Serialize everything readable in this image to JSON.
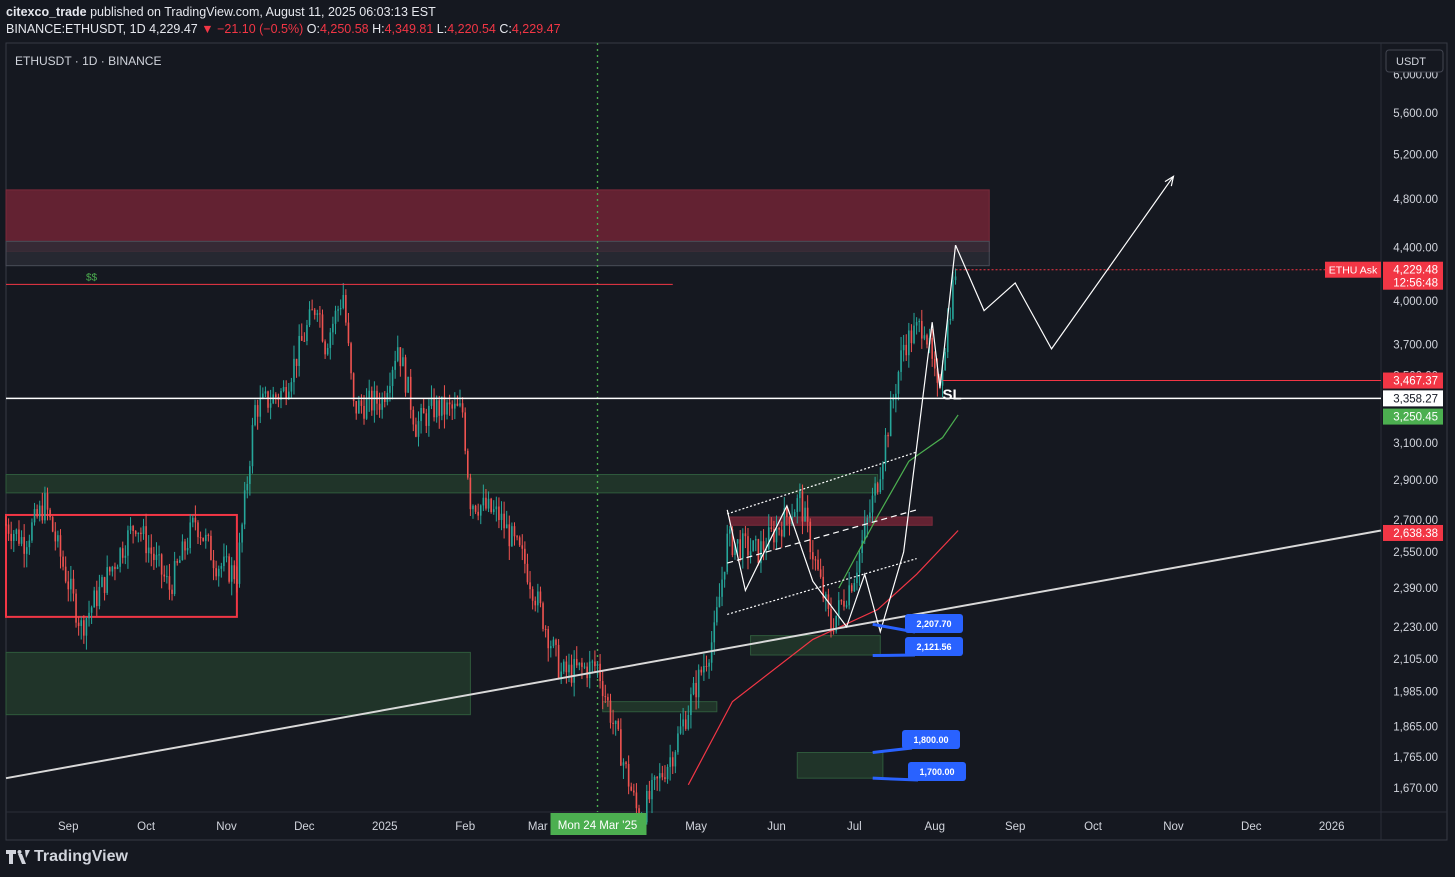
{
  "header": {
    "author": "citexco_trade",
    "published_text": "published on TradingView.com, August 11, 2025 06:03:13 EST",
    "symbol_line": "BINANCE:ETHUSDT, 1D",
    "last": "4,229.47",
    "change": "▼ −21.10 (−0.5%)",
    "o_label": "O:",
    "o": "4,250.58",
    "h_label": "H:",
    "h": "4,349.81",
    "l_label": "L:",
    "l": "4,220.54",
    "c_label": "C:",
    "c": "4,229.47"
  },
  "footer": {
    "brand": "TradingView"
  },
  "colors": {
    "background": "#151820",
    "up": "#26a69a",
    "down": "#ef5350",
    "supply_zone": "#6b2434",
    "demand_zone": "#22392c",
    "accent_blue": "#2962ff",
    "cursor_line": "#4caf50"
  },
  "chart_data": {
    "type": "candlestick",
    "title": "ETHUSDT · 1D · BINANCE",
    "currency": "USDT",
    "scale": "log",
    "ylim": [
      1600,
      6350
    ],
    "x_range": [
      "2024-08-08",
      "2026-01-20"
    ],
    "y_ticks": [
      6000,
      5600,
      5200,
      4800,
      4400,
      4000,
      3700,
      3500,
      3100,
      2900,
      2700,
      2550,
      2390,
      2230,
      2105,
      1985,
      1865,
      1765,
      1670
    ],
    "y_tick_labels": [
      "6,000.00",
      "5,600.00",
      "5,200.00",
      "4,800.00",
      "4,400.00",
      "4,000.00",
      "3,700.00",
      "3,500.00",
      "3,100.00",
      "2,900.00",
      "2,700.00",
      "2,550.00",
      "2,390.00",
      "2,230.00",
      "2,105.00",
      "1,985.00",
      "1,865.00",
      "1,765.00",
      "1,670.00"
    ],
    "x_ticks": [
      {
        "label": "Sep",
        "date": "2024-09-01"
      },
      {
        "label": "Oct",
        "date": "2024-10-01"
      },
      {
        "label": "Nov",
        "date": "2024-11-01"
      },
      {
        "label": "Dec",
        "date": "2024-12-01"
      },
      {
        "label": "2025",
        "date": "2025-01-01"
      },
      {
        "label": "Feb",
        "date": "2025-02-01"
      },
      {
        "label": "Mar",
        "date": "2025-03-01"
      },
      {
        "label": "May",
        "date": "2025-05-01"
      },
      {
        "label": "Jun",
        "date": "2025-06-01"
      },
      {
        "label": "Jul",
        "date": "2025-07-01"
      },
      {
        "label": "Aug",
        "date": "2025-08-01"
      },
      {
        "label": "Sep",
        "date": "2025-09-01"
      },
      {
        "label": "Oct",
        "date": "2025-10-01"
      },
      {
        "label": "Nov",
        "date": "2025-11-01"
      },
      {
        "label": "Dec",
        "date": "2025-12-01"
      },
      {
        "label": "2026",
        "date": "2026-01-01"
      }
    ],
    "cursor": {
      "date": "2025-03-24",
      "label": "Mon 24 Mar '25"
    },
    "price_close_path": [
      [
        "2024-08-08",
        2680
      ],
      [
        "2024-08-15",
        2600
      ],
      [
        "2024-08-23",
        2780
      ],
      [
        "2024-09-06",
        2230
      ],
      [
        "2024-09-15",
        2420
      ],
      [
        "2024-09-27",
        2690
      ],
      [
        "2024-10-10",
        2390
      ],
      [
        "2024-10-20",
        2700
      ],
      [
        "2024-10-28",
        2500
      ],
      [
        "2024-11-05",
        2450
      ],
      [
        "2024-11-12",
        3300
      ],
      [
        "2024-11-23",
        3400
      ],
      [
        "2024-12-06",
        4000
      ],
      [
        "2024-12-09",
        3700
      ],
      [
        "2024-12-16",
        4050
      ],
      [
        "2024-12-20",
        3300
      ],
      [
        "2024-12-31",
        3350
      ],
      [
        "2025-01-06",
        3700
      ],
      [
        "2025-01-13",
        3200
      ],
      [
        "2025-01-20",
        3300
      ],
      [
        "2025-01-31",
        3280
      ],
      [
        "2025-02-03",
        2800
      ],
      [
        "2025-02-14",
        2720
      ],
      [
        "2025-02-24",
        2500
      ],
      [
        "2025-03-10",
        2050
      ],
      [
        "2025-03-24",
        2080
      ],
      [
        "2025-04-09",
        1580
      ],
      [
        "2025-04-22",
        1780
      ],
      [
        "2025-05-08",
        2200
      ],
      [
        "2025-05-13",
        2600
      ],
      [
        "2025-05-25",
        2550
      ],
      [
        "2025-06-10",
        2800
      ],
      [
        "2025-06-22",
        2230
      ],
      [
        "2025-07-01",
        2450
      ],
      [
        "2025-07-10",
        2900
      ],
      [
        "2025-07-20",
        3700
      ],
      [
        "2025-07-28",
        3850
      ],
      [
        "2025-08-02",
        3380
      ],
      [
        "2025-08-09",
        4229.47
      ]
    ],
    "moving_averages": [
      {
        "name": "green",
        "color": "#4caf50",
        "points": [
          [
            "2025-06-25",
            2390
          ],
          [
            "2025-07-10",
            2720
          ],
          [
            "2025-07-22",
            3000
          ],
          [
            "2025-08-04",
            3130
          ],
          [
            "2025-08-10",
            3260
          ]
        ]
      },
      {
        "name": "red",
        "color": "#f23645",
        "points": [
          [
            "2025-04-28",
            1680
          ],
          [
            "2025-05-15",
            1950
          ],
          [
            "2025-06-15",
            2180
          ],
          [
            "2025-07-10",
            2300
          ],
          [
            "2025-07-25",
            2450
          ],
          [
            "2025-08-10",
            2650
          ]
        ]
      }
    ],
    "projection_path": [
      [
        "2025-08-09",
        4420
      ],
      [
        "2025-08-20",
        3930
      ],
      [
        "2025-09-01",
        4130
      ],
      [
        "2025-09-15",
        3670
      ],
      [
        "2025-11-01",
        5000
      ]
    ],
    "zones": [
      {
        "kind": "supply",
        "from": "2024-08-08",
        "to": "2025-08-22",
        "y_top": 4880,
        "y_bottom": 4370
      },
      {
        "kind": "supply-light",
        "from": "2024-08-08",
        "to": "2025-08-22",
        "y_top": 4450,
        "y_bottom": 4260
      },
      {
        "kind": "demand",
        "from": "2024-08-08",
        "to": "2025-07-10",
        "y_top": 2930,
        "y_bottom": 2835
      },
      {
        "kind": "demand",
        "from": "2024-08-08",
        "to": "2025-02-03",
        "y_top": 2130,
        "y_bottom": 1905
      },
      {
        "kind": "demand",
        "from": "2025-03-26",
        "to": "2025-05-09",
        "y_top": 1950,
        "y_bottom": 1915
      },
      {
        "kind": "demand",
        "from": "2025-05-22",
        "to": "2025-07-11",
        "y_top": 2195,
        "y_bottom": 2120
      },
      {
        "kind": "demand",
        "from": "2025-06-09",
        "to": "2025-07-12",
        "y_top": 1780,
        "y_bottom": 1700
      },
      {
        "kind": "supply",
        "from": "2025-05-14",
        "to": "2025-07-31",
        "y_top": 2715,
        "y_bottom": 2675
      },
      {
        "kind": "range-box",
        "from": "2024-08-08",
        "to": "2024-11-05",
        "y_top": 2725,
        "y_bottom": 2270
      }
    ],
    "horizontal_lines": [
      {
        "name": "liquidity",
        "label": "$$",
        "y": 4120,
        "from": "2024-08-08",
        "to": "2025-04-22",
        "color": "#f23645"
      },
      {
        "name": "sl",
        "label": "SL",
        "y": 3467.37,
        "from": "2025-08-04",
        "to": "2026-01-20",
        "color": "#f23645"
      },
      {
        "name": "key-level",
        "y": 3358.27,
        "from": "2024-08-08",
        "to": "2026-01-20",
        "color": "#ffffff"
      },
      {
        "name": "ask",
        "y": 4229.48,
        "from": "2025-08-09",
        "to": "2026-01-20",
        "color": "#f23645"
      }
    ],
    "trendline": {
      "p1": [
        "2024-08-08",
        1700
      ],
      "p2": [
        "2026-01-20",
        2650
      ]
    },
    "channel": {
      "upper": [
        [
          "2025-05-13",
          2730
        ],
        [
          "2025-07-25",
          3050
        ]
      ],
      "middle": [
        [
          "2025-05-13",
          2500
        ],
        [
          "2025-07-25",
          2750
        ]
      ],
      "lower": [
        [
          "2025-05-13",
          2280
        ],
        [
          "2025-07-25",
          2520
        ]
      ]
    },
    "zigzag": [
      [
        "2025-05-13",
        2750
      ],
      [
        "2025-05-20",
        2380
      ],
      [
        "2025-06-05",
        2770
      ],
      [
        "2025-06-15",
        2420
      ],
      [
        "2025-06-28",
        2230
      ],
      [
        "2025-07-05",
        2450
      ],
      [
        "2025-07-11",
        2210
      ],
      [
        "2025-07-20",
        2550
      ],
      [
        "2025-07-31",
        3850
      ],
      [
        "2025-08-03",
        3420
      ],
      [
        "2025-08-09",
        4420
      ]
    ],
    "price_labels": [
      {
        "label": "ETHU Ask",
        "value": "4,229.48",
        "sub": "12:56:48",
        "y": 4229.48,
        "color": "#f23645"
      },
      {
        "value": "3,467.37",
        "y": 3467.37,
        "color": "#f23645"
      },
      {
        "value": "3,358.27",
        "y": 3358.27,
        "color": "#ffffff"
      },
      {
        "value": "3,250.45",
        "y": 3250.45,
        "color": "#4caf50"
      },
      {
        "value": "2,638.38",
        "y": 2638.38,
        "color": "#f23645"
      }
    ],
    "callouts": [
      {
        "value": "2,207.70",
        "date": "2025-07-10",
        "y": 2240
      },
      {
        "value": "2,121.56",
        "date": "2025-07-10",
        "y": 2118
      },
      {
        "value": "1,800.00",
        "date": "2025-07-10",
        "y": 1780
      },
      {
        "value": "1,700.00",
        "date": "2025-07-10",
        "y": 1700
      }
    ]
  }
}
